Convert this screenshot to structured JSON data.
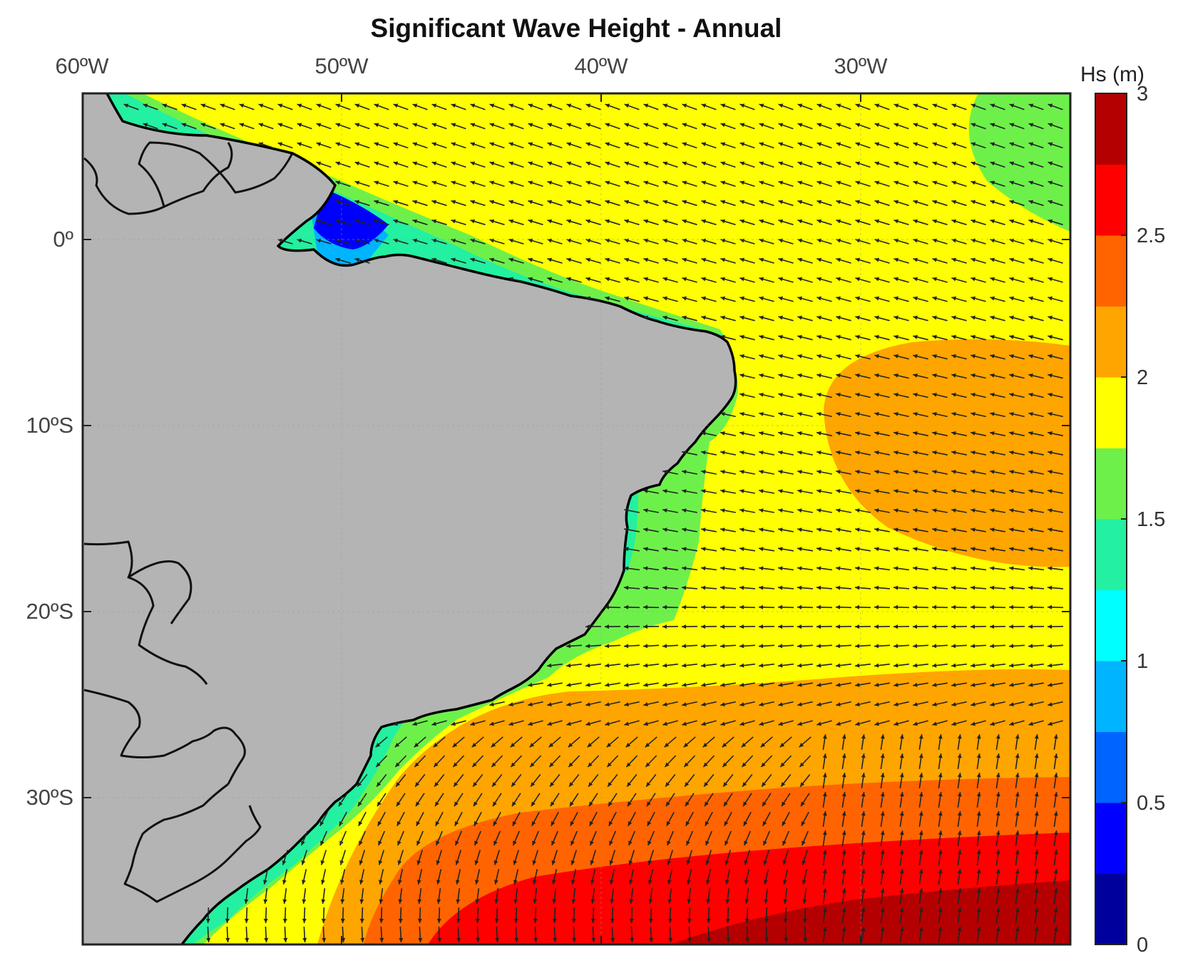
{
  "figure": {
    "title": "Significant Wave Height - Annual"
  },
  "map": {
    "lon_labels": [
      "60ºW",
      "50ºW",
      "40ºW",
      "30ºW"
    ],
    "lat_labels": [
      "0º",
      "10ºS",
      "20ºS",
      "30ºS"
    ],
    "land_color": "#b4b4b4",
    "border_color": "#111111",
    "arrow_color": "#222222"
  },
  "colorbar": {
    "label": "Hs (m)",
    "tick_labels": [
      "0",
      "0.5",
      "1",
      "1.5",
      "2",
      "2.5",
      "3"
    ],
    "levels": [
      {
        "from": 0.0,
        "to": 0.25,
        "color": "#00009c"
      },
      {
        "from": 0.25,
        "to": 0.5,
        "color": "#0000ff"
      },
      {
        "from": 0.5,
        "to": 0.75,
        "color": "#0064ff"
      },
      {
        "from": 0.75,
        "to": 1.0,
        "color": "#00b4ff"
      },
      {
        "from": 1.0,
        "to": 1.25,
        "color": "#00ffff"
      },
      {
        "from": 1.25,
        "to": 1.5,
        "color": "#23f0a0"
      },
      {
        "from": 1.5,
        "to": 1.75,
        "color": "#6ef04b"
      },
      {
        "from": 1.75,
        "to": 2.0,
        "color": "#ffff00"
      },
      {
        "from": 2.0,
        "to": 2.25,
        "color": "#ffa500"
      },
      {
        "from": 2.25,
        "to": 2.5,
        "color": "#ff6400"
      },
      {
        "from": 2.5,
        "to": 2.75,
        "color": "#ff0000"
      },
      {
        "from": 2.75,
        "to": 3.0,
        "color": "#b40000"
      }
    ]
  }
}
